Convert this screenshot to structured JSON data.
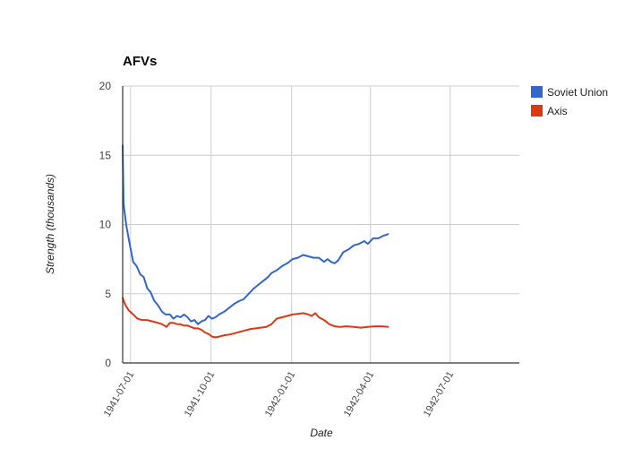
{
  "chart_data": {
    "type": "line",
    "title": "AFVs",
    "xlabel": "Date",
    "ylabel": "Strength (thousands)",
    "ylim": [
      0,
      20
    ],
    "yticks": [
      "0",
      "5",
      "10",
      "15",
      "20"
    ],
    "xticks": [
      "1941-07-01",
      "1941-10-01",
      "1942-01-01",
      "1942-04-01",
      "1942-07-01"
    ],
    "grid": true,
    "legend_position": "right",
    "x_start": "1941-06-22",
    "x_end": "1942-09-18",
    "x_unit": "days since 1941-06-22",
    "series": [
      {
        "name": "Soviet Union",
        "color": "#3366cc",
        "points": [
          [
            0,
            15.7
          ],
          [
            1,
            11.5
          ],
          [
            4,
            10.0
          ],
          [
            8,
            8.6
          ],
          [
            12,
            7.3
          ],
          [
            16,
            7.0
          ],
          [
            20,
            6.4
          ],
          [
            24,
            6.2
          ],
          [
            28,
            5.4
          ],
          [
            32,
            5.1
          ],
          [
            36,
            4.5
          ],
          [
            40,
            4.2
          ],
          [
            45,
            3.7
          ],
          [
            49,
            3.5
          ],
          [
            54,
            3.5
          ],
          [
            58,
            3.2
          ],
          [
            62,
            3.4
          ],
          [
            66,
            3.3
          ],
          [
            70,
            3.5
          ],
          [
            74,
            3.3
          ],
          [
            78,
            3.0
          ],
          [
            82,
            3.1
          ],
          [
            86,
            2.8
          ],
          [
            90,
            3.0
          ],
          [
            94,
            3.1
          ],
          [
            98,
            3.4
          ],
          [
            102,
            3.2
          ],
          [
            106,
            3.3
          ],
          [
            110,
            3.5
          ],
          [
            116,
            3.7
          ],
          [
            122,
            4.0
          ],
          [
            128,
            4.3
          ],
          [
            134,
            4.5
          ],
          [
            138,
            4.6
          ],
          [
            144,
            5.0
          ],
          [
            150,
            5.4
          ],
          [
            156,
            5.7
          ],
          [
            162,
            6.0
          ],
          [
            166,
            6.2
          ],
          [
            170,
            6.5
          ],
          [
            176,
            6.7
          ],
          [
            182,
            7.0
          ],
          [
            188,
            7.2
          ],
          [
            194,
            7.5
          ],
          [
            200,
            7.6
          ],
          [
            206,
            7.8
          ],
          [
            212,
            7.7
          ],
          [
            218,
            7.6
          ],
          [
            224,
            7.6
          ],
          [
            230,
            7.3
          ],
          [
            234,
            7.5
          ],
          [
            238,
            7.3
          ],
          [
            242,
            7.2
          ],
          [
            246,
            7.4
          ],
          [
            252,
            8.0
          ],
          [
            258,
            8.2
          ],
          [
            264,
            8.5
          ],
          [
            270,
            8.6
          ],
          [
            276,
            8.8
          ],
          [
            280,
            8.6
          ],
          [
            286,
            9.0
          ],
          [
            292,
            9.0
          ],
          [
            298,
            9.2
          ],
          [
            303,
            9.3
          ]
        ]
      },
      {
        "name": "Axis",
        "color": "#dc3912",
        "points": [
          [
            0,
            4.7
          ],
          [
            3,
            4.2
          ],
          [
            7,
            3.8
          ],
          [
            12,
            3.5
          ],
          [
            17,
            3.2
          ],
          [
            22,
            3.1
          ],
          [
            28,
            3.1
          ],
          [
            34,
            3.0
          ],
          [
            40,
            2.9
          ],
          [
            45,
            2.8
          ],
          [
            50,
            2.6
          ],
          [
            54,
            2.9
          ],
          [
            58,
            2.9
          ],
          [
            62,
            2.8
          ],
          [
            66,
            2.8
          ],
          [
            70,
            2.7
          ],
          [
            74,
            2.7
          ],
          [
            78,
            2.6
          ],
          [
            82,
            2.5
          ],
          [
            86,
            2.5
          ],
          [
            90,
            2.4
          ],
          [
            94,
            2.2
          ],
          [
            98,
            2.1
          ],
          [
            102,
            1.9
          ],
          [
            106,
            1.85
          ],
          [
            110,
            1.9
          ],
          [
            116,
            2.0
          ],
          [
            122,
            2.05
          ],
          [
            128,
            2.15
          ],
          [
            134,
            2.25
          ],
          [
            140,
            2.35
          ],
          [
            146,
            2.45
          ],
          [
            152,
            2.5
          ],
          [
            158,
            2.55
          ],
          [
            164,
            2.6
          ],
          [
            170,
            2.8
          ],
          [
            176,
            3.2
          ],
          [
            182,
            3.3
          ],
          [
            188,
            3.4
          ],
          [
            194,
            3.5
          ],
          [
            200,
            3.55
          ],
          [
            206,
            3.6
          ],
          [
            212,
            3.5
          ],
          [
            216,
            3.4
          ],
          [
            220,
            3.6
          ],
          [
            224,
            3.3
          ],
          [
            230,
            3.1
          ],
          [
            236,
            2.8
          ],
          [
            242,
            2.65
          ],
          [
            248,
            2.6
          ],
          [
            256,
            2.65
          ],
          [
            264,
            2.6
          ],
          [
            272,
            2.55
          ],
          [
            280,
            2.6
          ],
          [
            288,
            2.65
          ],
          [
            296,
            2.65
          ],
          [
            303,
            2.6
          ]
        ]
      }
    ]
  },
  "legend": {
    "items": [
      {
        "label": "Soviet Union",
        "color": "#3366cc"
      },
      {
        "label": "Axis",
        "color": "#dc3912"
      }
    ]
  }
}
